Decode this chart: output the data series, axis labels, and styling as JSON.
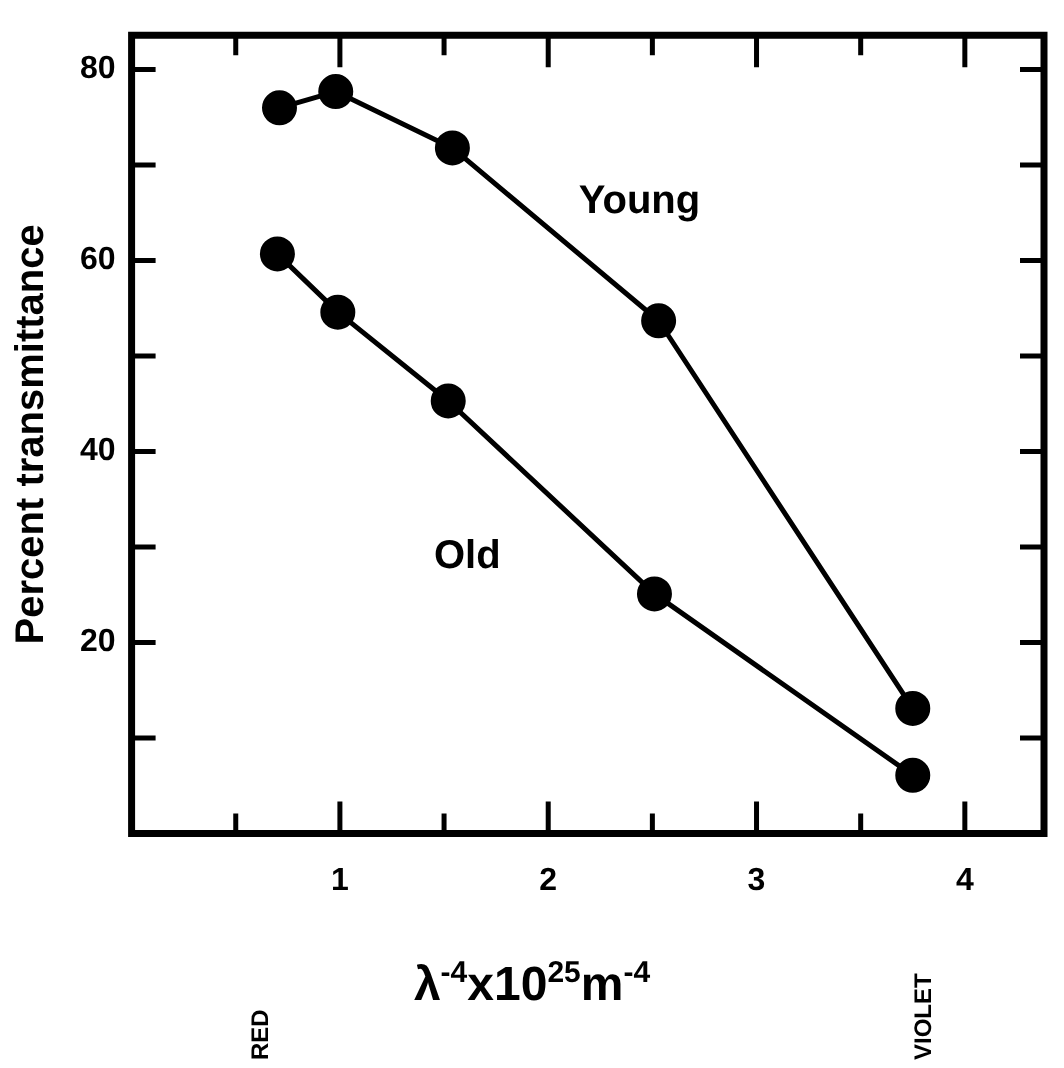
{
  "chart_data": {
    "type": "line",
    "xlabel": "λ$^{-4}$x10$^{25}$m$^{-4}$",
    "ylabel": "Percent transmittance",
    "xlim": [
      0,
      4.38
    ],
    "ylim": [
      0,
      83.6
    ],
    "xticks": [
      {
        "value": 0.5,
        "label": null
      },
      1,
      {
        "value": 1.5,
        "label": null
      },
      2,
      {
        "value": 2.5,
        "label": null
      },
      3,
      {
        "value": 3.5,
        "label": null
      },
      4
    ],
    "yticks": [
      {
        "value": 10,
        "label": null
      },
      20,
      {
        "value": 30,
        "label": null
      },
      40,
      {
        "value": 50,
        "label": null
      },
      60,
      {
        "value": 70,
        "label": null
      },
      80
    ],
    "grid": false,
    "legend": false,
    "marker": "circle",
    "line_style": "solid",
    "annotations": [
      "RED",
      "VIOLET"
    ],
    "series": [
      {
        "name": "Young",
        "color": "#000000",
        "x": [
          0.71,
          0.98,
          1.54,
          2.53,
          3.75
        ],
        "values": [
          76,
          77.7,
          71.8,
          53.7,
          13.1
        ]
      },
      {
        "name": "Old",
        "color": "#000000",
        "x": [
          0.7,
          0.99,
          1.52,
          2.51,
          3.75
        ],
        "values": [
          60.7,
          54.6,
          45.3,
          25.1,
          6.1
        ]
      }
    ]
  }
}
